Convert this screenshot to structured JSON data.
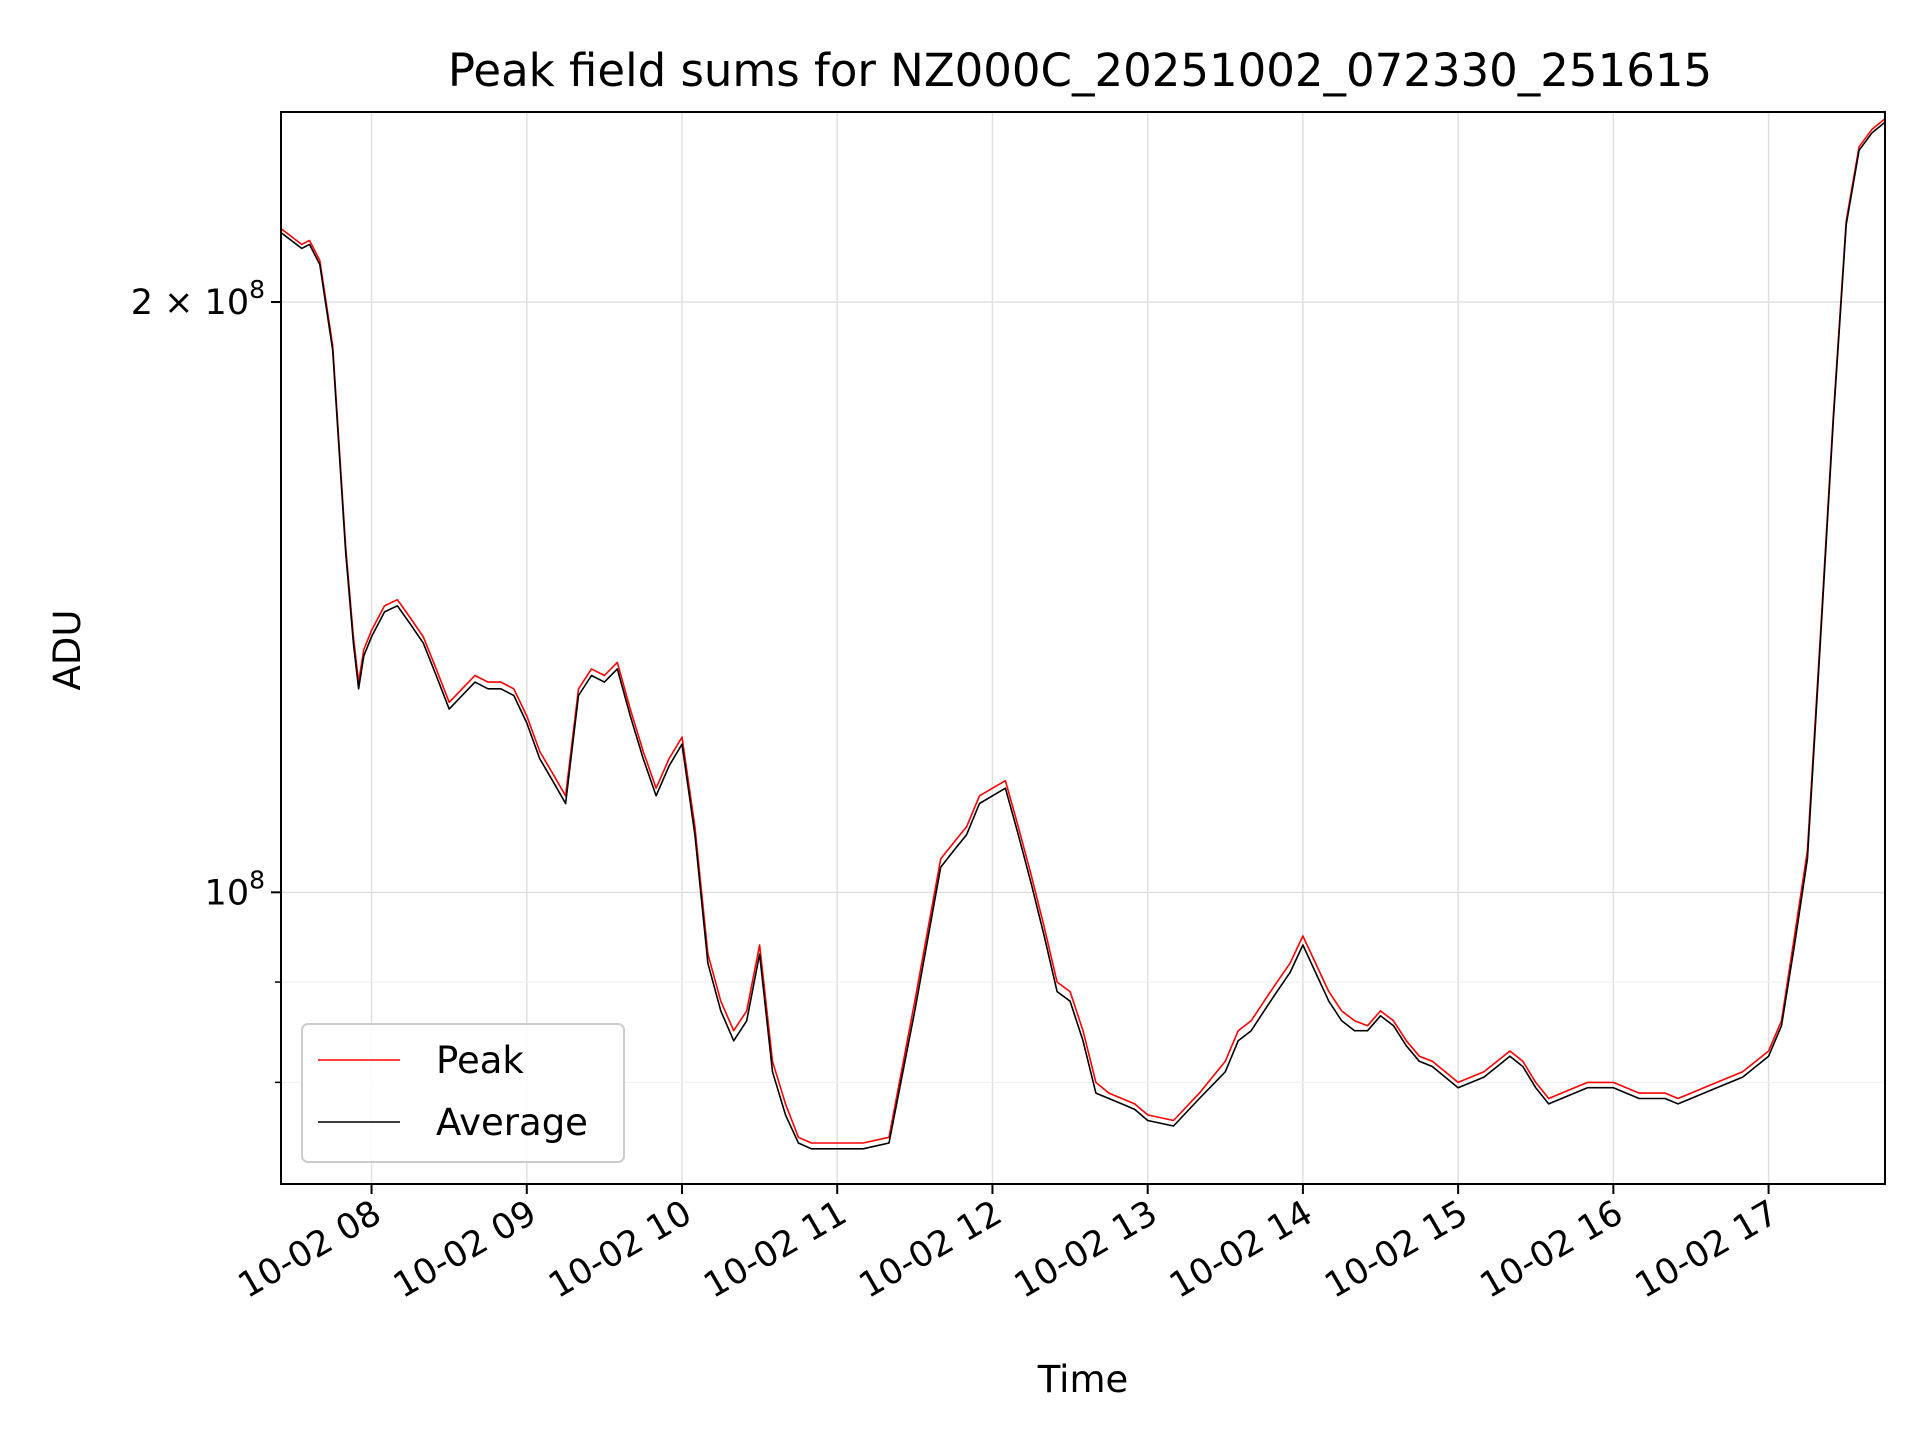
{
  "chart_data": {
    "type": "line",
    "title": "Peak field sums for NZ000C_20251002_072330_251615",
    "xlabel": "Time",
    "ylabel": "ADU",
    "yscale": "log",
    "grid": true,
    "legend_position": "lower-left",
    "x_ticks": [
      "10-02 08",
      "10-02 09",
      "10-02 10",
      "10-02 11",
      "10-02 12",
      "10-02 13",
      "10-02 14",
      "10-02 15",
      "10-02 16",
      "10-02 17"
    ],
    "y_ticks": [
      {
        "value": 100000000,
        "base": "10",
        "exp": "8",
        "prefix": ""
      },
      {
        "value": 200000000,
        "base": "10",
        "exp": "8",
        "prefix": "2 × "
      }
    ],
    "xlim": [
      "2025-10-02 07:25",
      "2025-10-02 17:45"
    ],
    "ylim": [
      71000000,
      250000000
    ],
    "x": [
      "2025-10-02 07:25",
      "2025-10-02 07:33",
      "2025-10-02 07:36",
      "2025-10-02 07:40",
      "2025-10-02 07:45",
      "2025-10-02 07:50",
      "2025-10-02 07:53",
      "2025-10-02 07:55",
      "2025-10-02 07:57",
      "2025-10-02 08:00",
      "2025-10-02 08:05",
      "2025-10-02 08:10",
      "2025-10-02 08:15",
      "2025-10-02 08:20",
      "2025-10-02 08:25",
      "2025-10-02 08:30",
      "2025-10-02 08:35",
      "2025-10-02 08:40",
      "2025-10-02 08:45",
      "2025-10-02 08:50",
      "2025-10-02 08:55",
      "2025-10-02 09:00",
      "2025-10-02 09:05",
      "2025-10-02 09:10",
      "2025-10-02 09:15",
      "2025-10-02 09:20",
      "2025-10-02 09:25",
      "2025-10-02 09:30",
      "2025-10-02 09:35",
      "2025-10-02 09:40",
      "2025-10-02 09:45",
      "2025-10-02 09:50",
      "2025-10-02 09:55",
      "2025-10-02 10:00",
      "2025-10-02 10:05",
      "2025-10-02 10:10",
      "2025-10-02 10:15",
      "2025-10-02 10:20",
      "2025-10-02 10:25",
      "2025-10-02 10:30",
      "2025-10-02 10:35",
      "2025-10-02 10:40",
      "2025-10-02 10:45",
      "2025-10-02 10:50",
      "2025-10-02 10:55",
      "2025-10-02 11:00",
      "2025-10-02 11:10",
      "2025-10-02 11:20",
      "2025-10-02 11:30",
      "2025-10-02 11:40",
      "2025-10-02 11:45",
      "2025-10-02 11:50",
      "2025-10-02 11:55",
      "2025-10-02 12:00",
      "2025-10-02 12:05",
      "2025-10-02 12:10",
      "2025-10-02 12:15",
      "2025-10-02 12:20",
      "2025-10-02 12:25",
      "2025-10-02 12:30",
      "2025-10-02 12:35",
      "2025-10-02 12:40",
      "2025-10-02 12:45",
      "2025-10-02 12:50",
      "2025-10-02 12:55",
      "2025-10-02 13:00",
      "2025-10-02 13:10",
      "2025-10-02 13:20",
      "2025-10-02 13:30",
      "2025-10-02 13:35",
      "2025-10-02 13:40",
      "2025-10-02 13:45",
      "2025-10-02 13:50",
      "2025-10-02 13:55",
      "2025-10-02 14:00",
      "2025-10-02 14:10",
      "2025-10-02 14:15",
      "2025-10-02 14:20",
      "2025-10-02 14:25",
      "2025-10-02 14:30",
      "2025-10-02 14:35",
      "2025-10-02 14:40",
      "2025-10-02 14:45",
      "2025-10-02 14:50",
      "2025-10-02 14:55",
      "2025-10-02 15:00",
      "2025-10-02 15:10",
      "2025-10-02 15:20",
      "2025-10-02 15:25",
      "2025-10-02 15:30",
      "2025-10-02 15:35",
      "2025-10-02 15:40",
      "2025-10-02 15:45",
      "2025-10-02 15:50",
      "2025-10-02 16:00",
      "2025-10-02 16:10",
      "2025-10-02 16:20",
      "2025-10-02 16:25",
      "2025-10-02 16:30",
      "2025-10-02 16:40",
      "2025-10-02 16:50",
      "2025-10-02 17:00",
      "2025-10-02 17:05",
      "2025-10-02 17:10",
      "2025-10-02 17:15",
      "2025-10-02 17:20",
      "2025-10-02 17:25",
      "2025-10-02 17:30",
      "2025-10-02 17:35",
      "2025-10-02 17:40",
      "2025-10-02 17:45"
    ],
    "series": [
      {
        "name": "Peak",
        "color": "#ff0000",
        "values": [
          218,
          214,
          215,
          210,
          190,
          150,
          135,
          128,
          133,
          136,
          140,
          141,
          138,
          135,
          130,
          125,
          127,
          129,
          128,
          128,
          127,
          123,
          118,
          115,
          112,
          127,
          130,
          129,
          131,
          124,
          118,
          113,
          117,
          120,
          108,
          93,
          88,
          85,
          87,
          94,
          82,
          78,
          75,
          74.5,
          74.5,
          74.5,
          74.5,
          75,
          88,
          104,
          106,
          108,
          112,
          113,
          114,
          108,
          102,
          96,
          90,
          89,
          85,
          80,
          79,
          78.5,
          78,
          77,
          76.5,
          79,
          82,
          85,
          86,
          88,
          90,
          92,
          95,
          89,
          87,
          86,
          85.5,
          87,
          86,
          84,
          82.5,
          82,
          81,
          80,
          81,
          83,
          82,
          80,
          78.5,
          79,
          79.5,
          80,
          80,
          79,
          79,
          78.5,
          79,
          80,
          81,
          83,
          86,
          95,
          105,
          135,
          175,
          220,
          240,
          245,
          248
        ]
      },
      {
        "name": "Average",
        "color": "#000000",
        "values": [
          217,
          213,
          214,
          209,
          189,
          149,
          134,
          127,
          132,
          135,
          139,
          140,
          137,
          134,
          129,
          124,
          126,
          128,
          127,
          127,
          126,
          122,
          117,
          114,
          111,
          126,
          129,
          128,
          130,
          123,
          117,
          112,
          116,
          119,
          107,
          92,
          87,
          84,
          86,
          93,
          81,
          77,
          74.5,
          74,
          74,
          74,
          74,
          74.5,
          87,
          103,
          105,
          107,
          111,
          112,
          113,
          107,
          101,
          95,
          89,
          88,
          84,
          79,
          78.5,
          78,
          77.5,
          76.5,
          76,
          78.5,
          81,
          84,
          85,
          87,
          89,
          91,
          94,
          88,
          86,
          85,
          85,
          86.5,
          85.5,
          83.5,
          82,
          81.5,
          80.5,
          79.5,
          80.5,
          82.5,
          81.5,
          79.5,
          78,
          78.5,
          79,
          79.5,
          79.5,
          78.5,
          78.5,
          78,
          78.5,
          79.5,
          80.5,
          82.5,
          85.5,
          94,
          104,
          134,
          174,
          219,
          239,
          244,
          247
        ]
      }
    ]
  }
}
